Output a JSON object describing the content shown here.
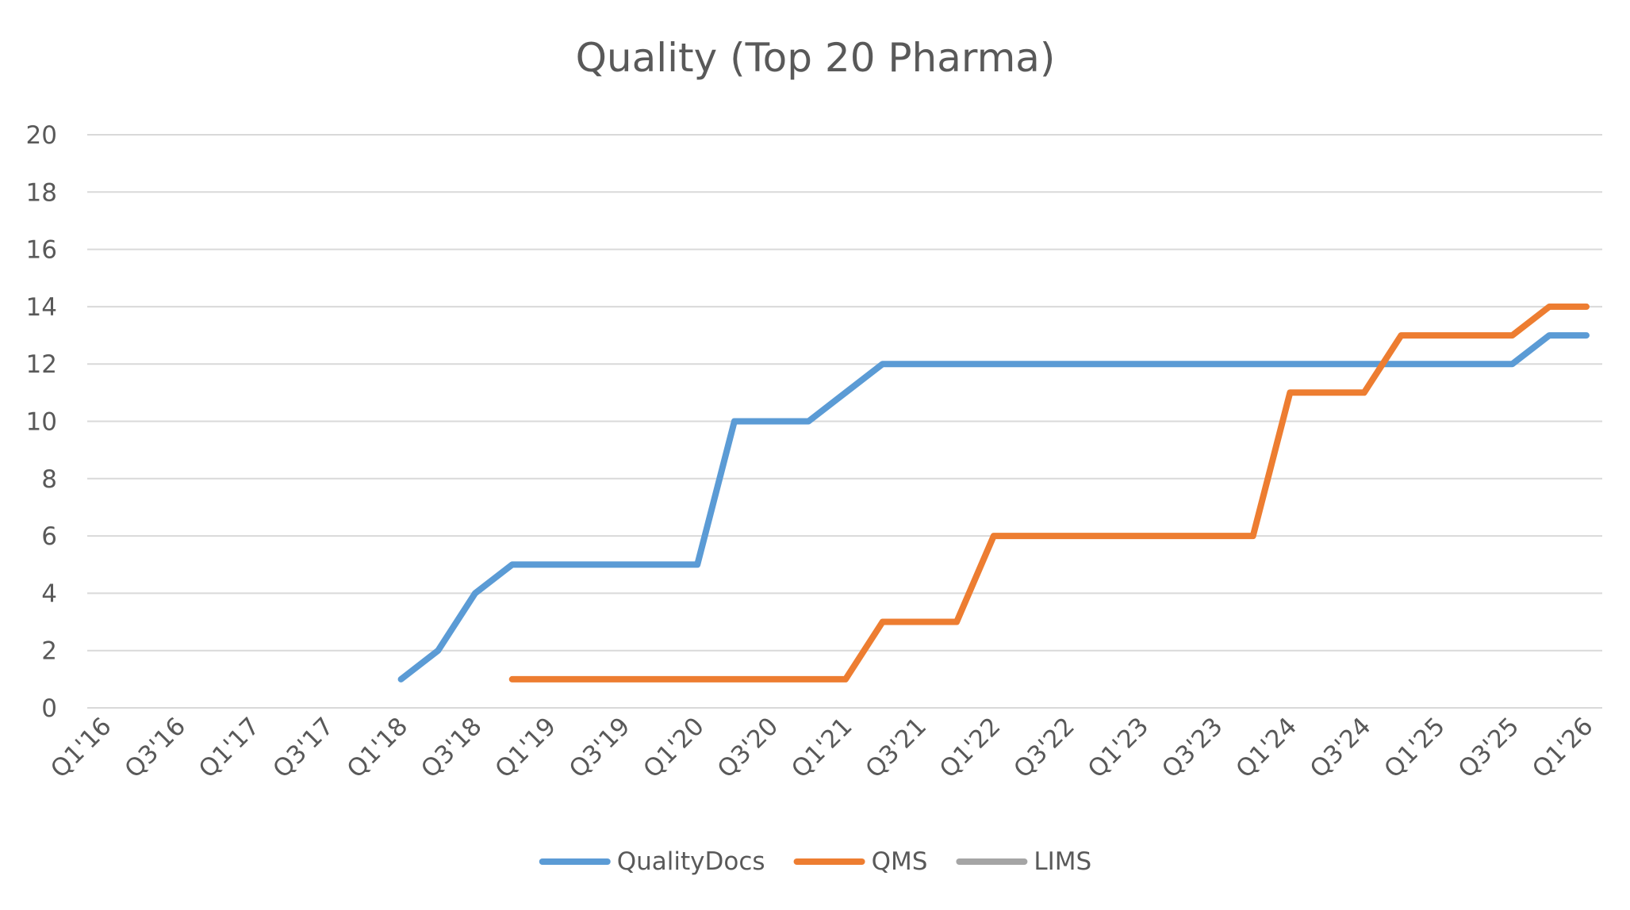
{
  "chart_data": {
    "type": "line",
    "title": "Quality (Top 20 Pharma)",
    "xlabel": "",
    "ylabel": "",
    "ylim": [
      0,
      20
    ],
    "yticks": [
      "0",
      "2",
      "4",
      "6",
      "8",
      "10",
      "12",
      "14",
      "16",
      "18",
      "20"
    ],
    "grid": true,
    "legend": "bottom",
    "x": [
      "Q1'16",
      "Q2'16",
      "Q3'16",
      "Q4'16",
      "Q1'17",
      "Q2'17",
      "Q3'17",
      "Q4'17",
      "Q1'18",
      "Q2'18",
      "Q3'18",
      "Q4'18",
      "Q1'19",
      "Q2'19",
      "Q3'19",
      "Q4'19",
      "Q1'20",
      "Q2'20",
      "Q3'20",
      "Q4'20",
      "Q1'21",
      "Q2'21",
      "Q3'21",
      "Q4'21",
      "Q1'22",
      "Q2'22",
      "Q3'22",
      "Q4'22",
      "Q1'23",
      "Q2'23",
      "Q3'23",
      "Q4'23",
      "Q1'24",
      "Q2'24",
      "Q3'24",
      "Q4'24",
      "Q1'25",
      "Q2'25",
      "Q3'25",
      "Q4'25",
      "Q1'26"
    ],
    "xtick_labels": [
      "Q1'16",
      "Q3'16",
      "Q1'17",
      "Q3'17",
      "Q1'18",
      "Q3'18",
      "Q1'19",
      "Q3'19",
      "Q1'20",
      "Q3'20",
      "Q1'21",
      "Q3'21",
      "Q1'22",
      "Q3'22",
      "Q1'23",
      "Q3'23",
      "Q1'24",
      "Q3'24",
      "Q1'25",
      "Q3'25",
      "Q1'26"
    ],
    "series": [
      {
        "name": "QualityDocs",
        "color": "#5b9bd5",
        "values": [
          null,
          null,
          null,
          null,
          null,
          null,
          null,
          null,
          1,
          2,
          4,
          5,
          5,
          5,
          5,
          5,
          5,
          10,
          10,
          10,
          11,
          12,
          12,
          12,
          12,
          12,
          12,
          12,
          12,
          12,
          12,
          12,
          12,
          12,
          12,
          12,
          12,
          12,
          12,
          13,
          13
        ]
      },
      {
        "name": "QMS",
        "color": "#ed7d31",
        "values": [
          null,
          null,
          null,
          null,
          null,
          null,
          null,
          null,
          null,
          null,
          null,
          1,
          1,
          1,
          1,
          1,
          1,
          1,
          1,
          1,
          1,
          3,
          3,
          3,
          6,
          6,
          6,
          6,
          6,
          6,
          6,
          6,
          11,
          11,
          11,
          13,
          13,
          13,
          13,
          14,
          14
        ]
      },
      {
        "name": "LIMS",
        "color": "#a5a5a5",
        "values": [
          null,
          null,
          null,
          null,
          null,
          null,
          null,
          null,
          null,
          null,
          null,
          null,
          null,
          null,
          null,
          null,
          null,
          null,
          null,
          null,
          null,
          null,
          null,
          null,
          null,
          null,
          null,
          null,
          null,
          null,
          null,
          null,
          null,
          null,
          null,
          null,
          null,
          null,
          null,
          null,
          null
        ]
      }
    ]
  }
}
